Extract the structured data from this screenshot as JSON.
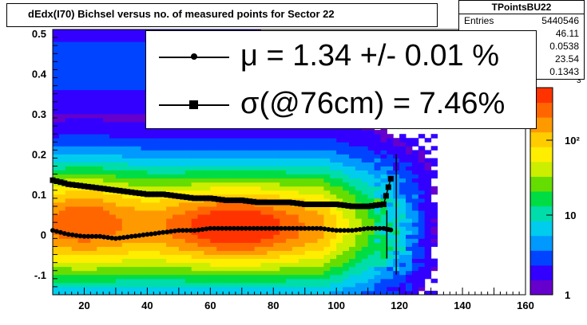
{
  "title": "dEdx(I70) Bichsel versus no. of measured points for Sector 22",
  "stats": {
    "name": "TPointsBU22",
    "rows": [
      {
        "key": "Entries",
        "value": "5440546"
      },
      {
        "key": "",
        "value": "46.11"
      },
      {
        "key": "",
        "value": "0.0538"
      },
      {
        "key": "",
        "value": "23.54"
      },
      {
        "key": "",
        "value": "0.1343"
      }
    ]
  },
  "legend": {
    "mu_text": "μ  =  1.34 +/-  0.01 %",
    "sigma_text": "σ(@76cm) =  7.46%"
  },
  "colorbar": {
    "ticks": [
      "1",
      "10",
      "10²"
    ],
    "partial_label": "3"
  },
  "chart_data": {
    "type": "heatmap",
    "title": "dEdx(I70) Bichsel versus no. of measured points for Sector 22",
    "xlim": [
      10,
      160
    ],
    "ylim": [
      -0.15,
      0.51
    ],
    "x_ticks": [
      20,
      40,
      60,
      80,
      100,
      120,
      140,
      160
    ],
    "y_ticks": [
      -0.1,
      0,
      0.1,
      0.2,
      0.3,
      0.4,
      0.5
    ],
    "z_scale": "log",
    "series": [
      {
        "name": "μ",
        "marker": "circle",
        "x": [
          10,
          15,
          20,
          25,
          30,
          35,
          40,
          45,
          50,
          55,
          60,
          65,
          70,
          75,
          80,
          85,
          90,
          95,
          100,
          105,
          110,
          115,
          118
        ],
        "y": [
          0.01,
          0.0,
          -0.005,
          -0.005,
          -0.01,
          -0.005,
          0.0,
          0.005,
          0.01,
          0.01,
          0.015,
          0.015,
          0.015,
          0.015,
          0.015,
          0.015,
          0.015,
          0.015,
          0.01,
          0.01,
          0.015,
          0.015,
          0.01
        ]
      },
      {
        "name": "σ",
        "marker": "square",
        "x": [
          10,
          15,
          20,
          25,
          30,
          35,
          40,
          45,
          50,
          55,
          60,
          65,
          70,
          75,
          80,
          85,
          90,
          95,
          100,
          105,
          110,
          115,
          118
        ],
        "y": [
          0.135,
          0.125,
          0.12,
          0.115,
          0.11,
          0.105,
          0.1,
          0.1,
          0.095,
          0.09,
          0.09,
          0.085,
          0.085,
          0.08,
          0.08,
          0.08,
          0.075,
          0.075,
          0.075,
          0.07,
          0.07,
          0.075,
          0.16
        ]
      }
    ]
  }
}
